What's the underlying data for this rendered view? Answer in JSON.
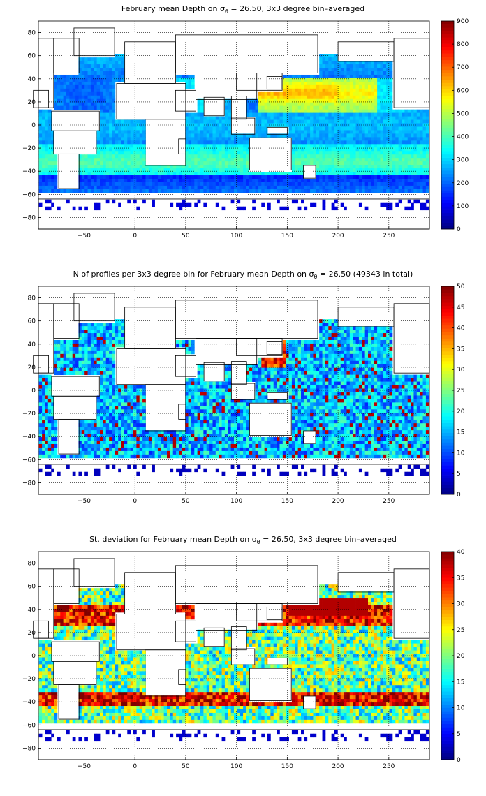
{
  "chart_data": [
    {
      "type": "heatmap",
      "title_parts": [
        "February mean Depth on ",
        "σ",
        "θ",
        " = 26.50, 3x3 degree bin–averaged"
      ],
      "xlabel": "",
      "ylabel": "",
      "xlim": [
        -95,
        290
      ],
      "ylim": [
        -90,
        90
      ],
      "xticks": [
        -50,
        0,
        50,
        100,
        150,
        200,
        250
      ],
      "yticks": [
        -80,
        -60,
        -40,
        -20,
        0,
        20,
        40,
        60,
        80
      ],
      "grid": true,
      "colorbar": {
        "min": 0,
        "max": 900,
        "ticks": [
          0,
          100,
          200,
          300,
          400,
          500,
          600,
          700,
          800,
          900
        ],
        "colormap": "jet"
      },
      "field": "depth"
    },
    {
      "type": "heatmap",
      "title_parts": [
        "N of profiles per 3x3 degree bin for February mean Depth on ",
        "σ",
        "θ",
        " = 26.50 (49343 in total)"
      ],
      "xlabel": "",
      "ylabel": "",
      "xlim": [
        -95,
        290
      ],
      "ylim": [
        -90,
        90
      ],
      "xticks": [
        -50,
        0,
        50,
        100,
        150,
        200,
        250
      ],
      "yticks": [
        -80,
        -60,
        -40,
        -20,
        0,
        20,
        40,
        60,
        80
      ],
      "grid": true,
      "colorbar": {
        "min": 0,
        "max": 50,
        "ticks": [
          0,
          5,
          10,
          15,
          20,
          25,
          30,
          35,
          40,
          45,
          50
        ],
        "colormap": "jet"
      },
      "field": "count"
    },
    {
      "type": "heatmap",
      "title_parts": [
        "St. deviation for February mean Depth on ",
        "σ",
        "θ",
        " = 26.50, 3x3 degree bin–averaged"
      ],
      "xlabel": "",
      "ylabel": "",
      "xlim": [
        -95,
        290
      ],
      "ylim": [
        -90,
        90
      ],
      "xticks": [
        -50,
        0,
        50,
        100,
        150,
        200,
        250
      ],
      "yticks": [
        -80,
        -60,
        -40,
        -20,
        0,
        20,
        40,
        60,
        80
      ],
      "grid": true,
      "colorbar": {
        "min": 0,
        "max": 40,
        "ticks": [
          0,
          5,
          10,
          15,
          20,
          25,
          30,
          35,
          40
        ],
        "colormap": "jet"
      },
      "field": "std"
    }
  ]
}
